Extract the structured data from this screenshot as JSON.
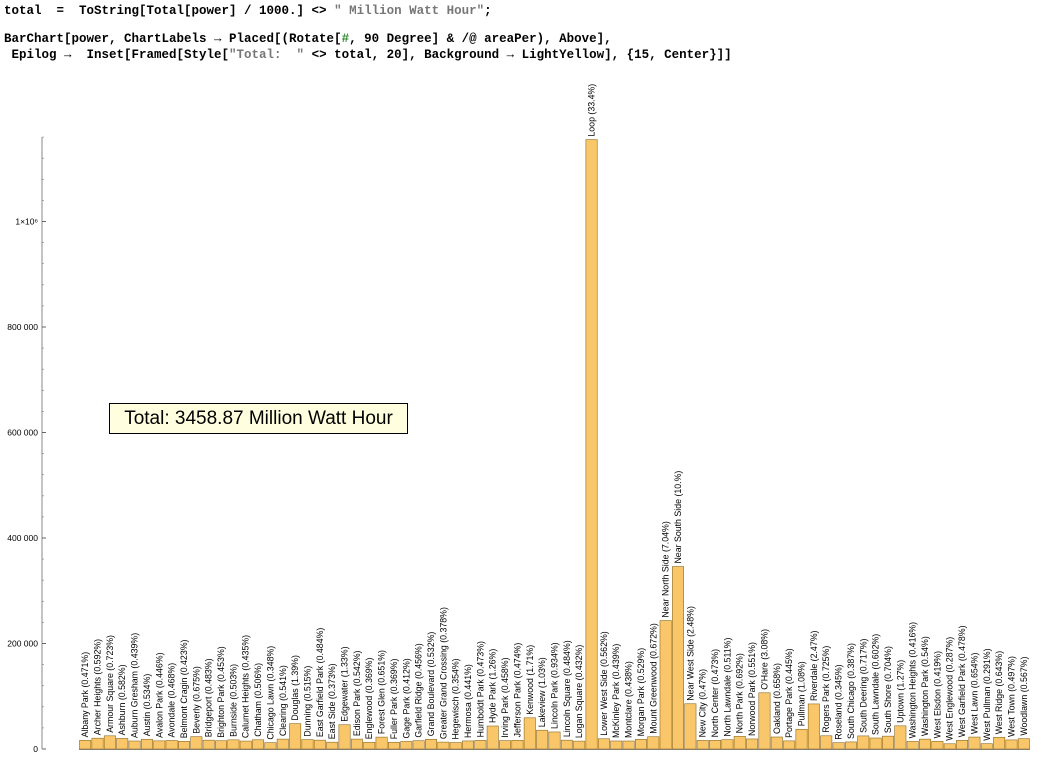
{
  "code": {
    "line1": [
      "total  =  ToString[Total[power] / 1000.] <> ",
      "\" Million Watt Hour\"",
      ";"
    ],
    "line2": [
      "BarChart[power, ChartLabels → Placed[(Rotate[",
      "#",
      ", 90 Degree] & /@ areaPer), Above],"
    ],
    "line3": [
      " Epilog →  Inset[Framed[Style[",
      "\"Total:  \"",
      " <> total, 20], Background → LightYellow], {15, Center}]]"
    ]
  },
  "inset": {
    "text": "Total: 3458.87 Million Watt Hour"
  },
  "colors": {
    "bar_fill": "#f9c76a",
    "bar_stroke": "#8c6a23",
    "inset_bg": "#ffffe0"
  },
  "chart_data": {
    "type": "bar",
    "ylim": [
      0,
      1160000
    ],
    "y_ticks": [
      {
        "value": 0,
        "label": "0"
      },
      {
        "value": 200000,
        "label": "200 000"
      },
      {
        "value": 400000,
        "label": "400 000"
      },
      {
        "value": 600000,
        "label": "600 000"
      },
      {
        "value": 800000,
        "label": "800 000"
      },
      {
        "value": 1000000,
        "label": "1×10⁶"
      }
    ],
    "grid": false,
    "categories": [
      "Albany Park (0.471%)",
      "Archer Heights (0.592%)",
      "Armour Square (0.723%)",
      "Ashburn (0.582%)",
      "Auburn Gresham (0.439%)",
      "Austin (0.534%)",
      "Avalon Park (0.446%)",
      "Avondale (0.468%)",
      "Belmont Cragin (0.423%)",
      "Beverly (0.675%)",
      "Bridgeport (0.483%)",
      "Brighton Park (0.453%)",
      "Burnside (0.503%)",
      "Calumet Heights (0.435%)",
      "Chatham (0.506%)",
      "Chicago Lawn (0.348%)",
      "Clearing (0.541%)",
      "Douglas (1.39%)",
      "Dunning (0.515%)",
      "East Garfield Park (0.484%)",
      "East Side (0.373%)",
      "Edgewater (1.33%)",
      "Edison Park (0.542%)",
      "Englewood (0.369%)",
      "Forest Glen (0.651%)",
      "Fuller Park (0.369%)",
      "Gage Park (0.412%)",
      "Garfield Ridge (0.456%)",
      "Grand Boulevard (0.532%)",
      "Greater Grand Crossing (0.378%)",
      "Hegewisch (0.354%)",
      "Hermosa (0.441%)",
      "Humboldt Park (0.473%)",
      "Hyde Park (1.26%)",
      "Irving Park (0.458%)",
      "Jefferson Park (0.474%)",
      "Kenwood (1.71%)",
      "Lakeview (1.03%)",
      "Lincoln Park (0.934%)",
      "Lincoln Square (0.484%)",
      "Logan Square (0.432%)",
      "Loop (33.4%)",
      "Lower West Side (0.562%)",
      "McKinley Park (0.439%)",
      "Montclare (0.438%)",
      "Morgan Park (0.529%)",
      "Mount Greenwood (0.672%)",
      "Near North Side (7.04%)",
      "Near South Side (10.%)",
      "Near West Side (2.48%)",
      "New City (0.47%)",
      "North Center (0.473%)",
      "North Lawndale (0.511%)",
      "North Park (0.692%)",
      "Norwood Park (0.551%)",
      "O'Hare (3.08%)",
      "Oakland (0.658%)",
      "Portage Park (0.445%)",
      "Pullman (1.08%)",
      "Riverdale (2.47%)",
      "Rogers Park (0.725%)",
      "Roseland (0.345%)",
      "South Chicago (0.387%)",
      "South Deering (0.717%)",
      "South Lawndale (0.602%)",
      "South Shore (0.704%)",
      "Uptown (1.27%)",
      "Washington Heights (0.416%)",
      "Washington Park (0.54%)",
      "West Elsdon (0.419%)",
      "West Englewood (0.287%)",
      "West Garfield Park (0.478%)",
      "West Lawn (0.654%)",
      "West Pullman (0.291%)",
      "West Ridge (0.643%)",
      "West Town (0.497%)",
      "Woodlawn (0.567%)"
    ],
    "values": [
      16291,
      20476,
      25007,
      20131,
      15184,
      18471,
      15427,
      16188,
      14631,
      23348,
      16706,
      15669,
      17398,
      15046,
      17502,
      12037,
      18713,
      48078,
      17813,
      16741,
      12902,
      46004,
      18747,
      12763,
      22517,
      12763,
      14251,
      15773,
      18401,
      13074,
      12244,
      15254,
      16360,
      43582,
      15842,
      16395,
      59146,
      35626,
      32306,
      16741,
      14942,
      1155266,
      19439,
      15184,
      15150,
      18298,
      23244,
      243503,
      345887,
      85780,
      16257,
      16360,
      17675,
      23935,
      19059,
      106533,
      22759,
      15392,
      37356,
      85434,
      25077,
      11933,
      13386,
      24800,
      20822,
      24350,
      43928,
      14389,
      18678,
      14493,
      9927,
      16533,
      22621,
      10065,
      22240,
      17190,
      19612
    ]
  }
}
